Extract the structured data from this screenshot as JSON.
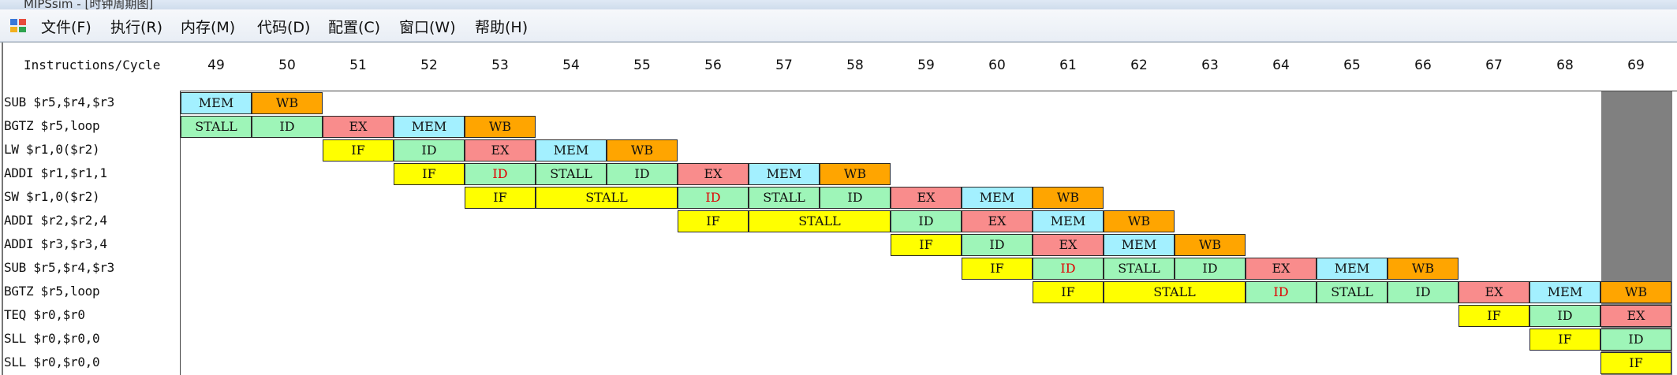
{
  "window": {
    "title": "MIPSsim - [时钟周期图]"
  },
  "menu": {
    "items": [
      "文件(F)",
      "执行(R)",
      "内存(M)",
      "代码(D)",
      "配置(C)",
      "窗口(W)",
      "帮助(H)"
    ]
  },
  "grid": {
    "header_label": "Instructions/Cycle",
    "cycles": [
      "49",
      "50",
      "51",
      "52",
      "53",
      "54",
      "55",
      "56",
      "57",
      "58",
      "59",
      "60",
      "61",
      "62",
      "63",
      "64",
      "65",
      "66",
      "67",
      "68",
      "69"
    ],
    "instructions": [
      "SUB $r5,$r4,$r3",
      "BGTZ $r5,loop",
      "LW $r1,0($r2)",
      "ADDI $r1,$r1,1",
      "SW $r1,0($r2)",
      "ADDI $r2,$r2,4",
      "ADDI $r3,$r3,4",
      "SUB $r5,$r4,$r3",
      "BGTZ $r5,loop",
      "TEQ $r0,$r0",
      "SLL $r0,$r0,0",
      "SLL $r0,$r0,0"
    ],
    "rows": [
      [
        {
          "c": 49,
          "s": 1,
          "t": "MEM",
          "k": "mem"
        },
        {
          "c": 50,
          "s": 1,
          "t": "WB",
          "k": "wb"
        }
      ],
      [
        {
          "c": 49,
          "s": 1,
          "t": "STALL",
          "k": "stall"
        },
        {
          "c": 50,
          "s": 1,
          "t": "ID",
          "k": "id"
        },
        {
          "c": 51,
          "s": 1,
          "t": "EX",
          "k": "ex"
        },
        {
          "c": 52,
          "s": 1,
          "t": "MEM",
          "k": "mem"
        },
        {
          "c": 53,
          "s": 1,
          "t": "WB",
          "k": "wb"
        }
      ],
      [
        {
          "c": 51,
          "s": 1,
          "t": "IF",
          "k": "if"
        },
        {
          "c": 52,
          "s": 1,
          "t": "ID",
          "k": "id"
        },
        {
          "c": 53,
          "s": 1,
          "t": "EX",
          "k": "ex"
        },
        {
          "c": 54,
          "s": 1,
          "t": "MEM",
          "k": "mem"
        },
        {
          "c": 55,
          "s": 1,
          "t": "WB",
          "k": "wb"
        }
      ],
      [
        {
          "c": 52,
          "s": 1,
          "t": "IF",
          "k": "if"
        },
        {
          "c": 53,
          "s": 1,
          "t": "ID",
          "k": "id",
          "red": true
        },
        {
          "c": 54,
          "s": 1,
          "t": "STALL",
          "k": "stall"
        },
        {
          "c": 55,
          "s": 1,
          "t": "ID",
          "k": "id"
        },
        {
          "c": 56,
          "s": 1,
          "t": "EX",
          "k": "ex"
        },
        {
          "c": 57,
          "s": 1,
          "t": "MEM",
          "k": "mem"
        },
        {
          "c": 58,
          "s": 1,
          "t": "WB",
          "k": "wb"
        }
      ],
      [
        {
          "c": 53,
          "s": 1,
          "t": "IF",
          "k": "if"
        },
        {
          "c": 54,
          "s": 2,
          "t": "STALL",
          "k": "if"
        },
        {
          "c": 56,
          "s": 1,
          "t": "ID",
          "k": "id",
          "red": true
        },
        {
          "c": 57,
          "s": 1,
          "t": "STALL",
          "k": "stall"
        },
        {
          "c": 58,
          "s": 1,
          "t": "ID",
          "k": "id"
        },
        {
          "c": 59,
          "s": 1,
          "t": "EX",
          "k": "ex"
        },
        {
          "c": 60,
          "s": 1,
          "t": "MEM",
          "k": "mem"
        },
        {
          "c": 61,
          "s": 1,
          "t": "WB",
          "k": "wb"
        }
      ],
      [
        {
          "c": 56,
          "s": 1,
          "t": "IF",
          "k": "if"
        },
        {
          "c": 57,
          "s": 2,
          "t": "STALL",
          "k": "if"
        },
        {
          "c": 59,
          "s": 1,
          "t": "ID",
          "k": "id"
        },
        {
          "c": 60,
          "s": 1,
          "t": "EX",
          "k": "ex"
        },
        {
          "c": 61,
          "s": 1,
          "t": "MEM",
          "k": "mem"
        },
        {
          "c": 62,
          "s": 1,
          "t": "WB",
          "k": "wb"
        }
      ],
      [
        {
          "c": 59,
          "s": 1,
          "t": "IF",
          "k": "if"
        },
        {
          "c": 60,
          "s": 1,
          "t": "ID",
          "k": "id"
        },
        {
          "c": 61,
          "s": 1,
          "t": "EX",
          "k": "ex"
        },
        {
          "c": 62,
          "s": 1,
          "t": "MEM",
          "k": "mem"
        },
        {
          "c": 63,
          "s": 1,
          "t": "WB",
          "k": "wb"
        }
      ],
      [
        {
          "c": 60,
          "s": 1,
          "t": "IF",
          "k": "if"
        },
        {
          "c": 61,
          "s": 1,
          "t": "ID",
          "k": "id",
          "red": true
        },
        {
          "c": 62,
          "s": 1,
          "t": "STALL",
          "k": "stall"
        },
        {
          "c": 63,
          "s": 1,
          "t": "ID",
          "k": "id"
        },
        {
          "c": 64,
          "s": 1,
          "t": "EX",
          "k": "ex"
        },
        {
          "c": 65,
          "s": 1,
          "t": "MEM",
          "k": "mem"
        },
        {
          "c": 66,
          "s": 1,
          "t": "WB",
          "k": "wb"
        }
      ],
      [
        {
          "c": 61,
          "s": 1,
          "t": "IF",
          "k": "if"
        },
        {
          "c": 62,
          "s": 2,
          "t": "STALL",
          "k": "if"
        },
        {
          "c": 64,
          "s": 1,
          "t": "ID",
          "k": "id",
          "red": true
        },
        {
          "c": 65,
          "s": 1,
          "t": "STALL",
          "k": "stall"
        },
        {
          "c": 66,
          "s": 1,
          "t": "ID",
          "k": "id"
        },
        {
          "c": 67,
          "s": 1,
          "t": "EX",
          "k": "ex"
        },
        {
          "c": 68,
          "s": 1,
          "t": "MEM",
          "k": "mem"
        },
        {
          "c": 69,
          "s": 1,
          "t": "WB",
          "k": "wb"
        }
      ],
      [
        {
          "c": 67,
          "s": 1,
          "t": "IF",
          "k": "if"
        },
        {
          "c": 68,
          "s": 1,
          "t": "ID",
          "k": "id"
        },
        {
          "c": 69,
          "s": 1,
          "t": "EX",
          "k": "ex"
        }
      ],
      [
        {
          "c": 68,
          "s": 1,
          "t": "IF",
          "k": "if"
        },
        {
          "c": 69,
          "s": 1,
          "t": "ID",
          "k": "id"
        }
      ],
      [
        {
          "c": 69,
          "s": 1,
          "t": "IF",
          "k": "if"
        }
      ]
    ]
  }
}
